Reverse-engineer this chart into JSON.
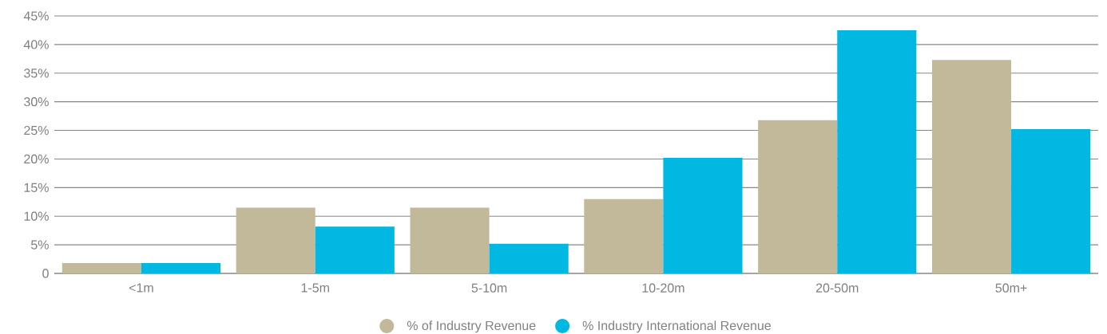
{
  "chart_data": {
    "type": "bar",
    "categories": [
      "<1m",
      "1-5m",
      "5-10m",
      "10-20m",
      "20-50m",
      "50m+"
    ],
    "series": [
      {
        "name": "% of Industry Revenue",
        "color": "#c2b99b",
        "values": [
          1.8,
          11.5,
          11.5,
          13.0,
          26.8,
          37.3
        ]
      },
      {
        "name": "% Industry International Revenue",
        "color": "#00b8e1",
        "values": [
          1.8,
          8.2,
          5.2,
          20.2,
          42.5,
          25.2
        ]
      }
    ],
    "ylim": [
      0,
      45
    ],
    "yticks": [
      {
        "value": 0,
        "label": "0"
      },
      {
        "value": 5,
        "label": "5%"
      },
      {
        "value": 10,
        "label": "10%"
      },
      {
        "value": 15,
        "label": "15%"
      },
      {
        "value": 20,
        "label": "20%"
      },
      {
        "value": 25,
        "label": "25%"
      },
      {
        "value": 30,
        "label": "30%"
      },
      {
        "value": 35,
        "label": "35%"
      },
      {
        "value": 40,
        "label": "40%"
      },
      {
        "value": 45,
        "label": "45%"
      }
    ],
    "grid": "y",
    "legend": "bottom"
  }
}
